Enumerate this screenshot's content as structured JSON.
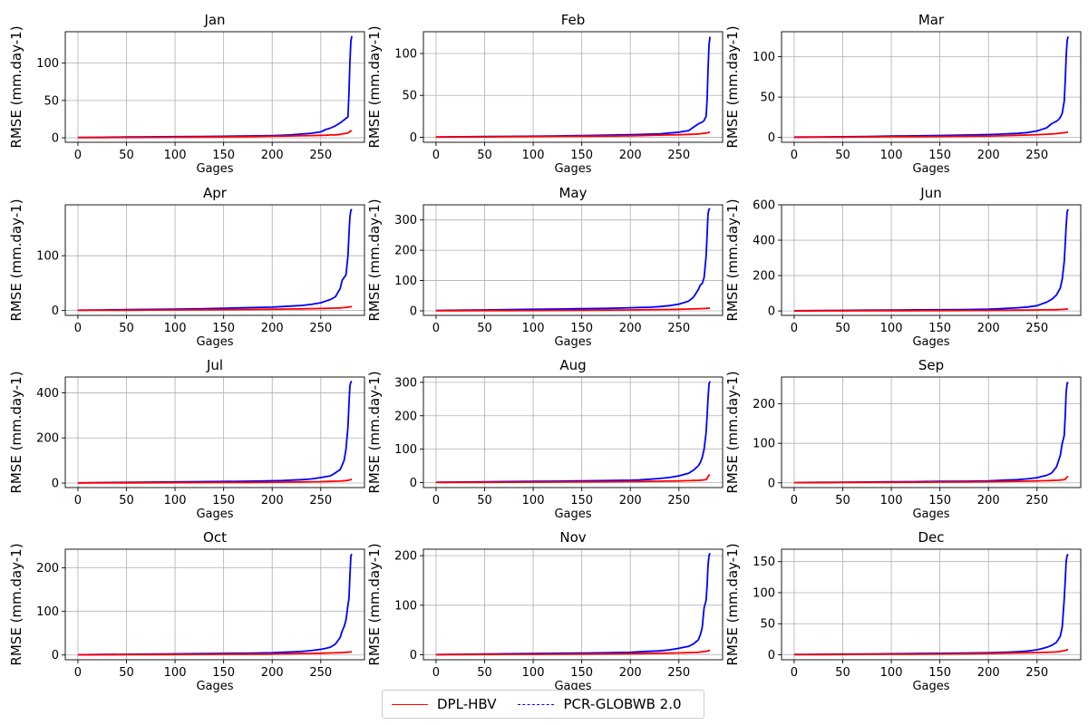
{
  "chart_data": {
    "type": "line",
    "layout": "4x3 grid of subplots",
    "x_label": "Gages",
    "y_label": "RMSE (mm.day-1)",
    "xlim": [
      -13,
      295
    ],
    "x_ticks": [
      0,
      50,
      100,
      150,
      200,
      250
    ],
    "grid": true,
    "legend": {
      "placement": "bottom-center",
      "entries": [
        {
          "name": "DPL-HBV",
          "color": "#ff0000",
          "style": "solid"
        },
        {
          "name": "PCR-GLOBWB 2.0",
          "color": "#0000ff",
          "style": "dashed"
        }
      ]
    },
    "x": [
      0,
      25,
      50,
      75,
      100,
      125,
      150,
      175,
      200,
      210,
      220,
      230,
      240,
      250,
      255,
      260,
      265,
      270,
      272,
      274,
      276,
      278,
      279,
      280,
      281,
      282
    ],
    "subplots": [
      {
        "title": "Jan",
        "ylim": [
          -6,
          142
        ],
        "y_ticks": [
          0,
          50,
          100
        ],
        "series": [
          {
            "name": "DPL-HBV",
            "values": [
              0.2,
              0.3,
              0.4,
              0.6,
              0.8,
              1,
              1.2,
              1.5,
              2,
              2.2,
              2.5,
              2.8,
              3,
              3.3,
              3.5,
              3.8,
              4,
              4.5,
              5,
              5.5,
              6,
              6.5,
              7.5,
              8.5,
              9,
              9.5
            ]
          },
          {
            "name": "PCR-GLOBWB 2.0",
            "values": [
              0.5,
              0.7,
              1,
              1.3,
              1.5,
              1.8,
              2,
              2.5,
              3,
              3.3,
              4,
              5,
              6,
              8,
              11,
              13,
              16,
              20,
              22,
              24,
              26,
              28,
              60,
              100,
              130,
              136
            ]
          }
        ]
      },
      {
        "title": "Feb",
        "ylim": [
          -6,
          126
        ],
        "y_ticks": [
          0,
          50,
          100
        ],
        "series": [
          {
            "name": "DPL-HBV",
            "values": [
              0.2,
              0.3,
              0.4,
              0.6,
              0.8,
              1,
              1.2,
              1.4,
              1.7,
              2,
              2.2,
              2.5,
              2.8,
              3,
              3.2,
              3.4,
              3.6,
              4,
              4.2,
              4.5,
              4.8,
              5,
              5.2,
              5.5,
              5.8,
              6
            ]
          },
          {
            "name": "PCR-GLOBWB 2.0",
            "values": [
              0.4,
              0.6,
              0.8,
              1,
              1.3,
              1.6,
              2,
              2.4,
              3,
              3.3,
              3.7,
              4,
              5,
              6,
              7,
              8,
              12,
              16,
              17,
              18,
              20,
              25,
              45,
              80,
              110,
              120
            ]
          }
        ]
      },
      {
        "title": "Mar",
        "ylim": [
          -6,
          131
        ],
        "y_ticks": [
          0,
          50,
          100
        ],
        "series": [
          {
            "name": "DPL-HBV",
            "values": [
              0.2,
              0.3,
              0.4,
              0.6,
              0.8,
              1,
              1.2,
              1.5,
              1.8,
              2,
              2.3,
              2.6,
              3,
              3.4,
              3.7,
              4,
              4.3,
              4.7,
              5,
              5.3,
              5.6,
              5.9,
              6.1,
              6.3,
              6.5,
              6.7
            ]
          },
          {
            "name": "PCR-GLOBWB 2.0",
            "values": [
              0.4,
              0.6,
              0.9,
              1.2,
              1.6,
              2,
              2.4,
              3,
              3.6,
              4,
              4.5,
              5,
              6,
              8,
              10,
              12,
              17,
              20,
              22,
              25,
              30,
              45,
              70,
              100,
              120,
              125
            ]
          }
        ]
      },
      {
        "title": "Apr",
        "ylim": [
          -9,
          193
        ],
        "y_ticks": [
          0,
          100
        ],
        "series": [
          {
            "name": "DPL-HBV",
            "values": [
              0.2,
              0.3,
              0.5,
              0.7,
              1,
              1.2,
              1.5,
              1.8,
              2.2,
              2.5,
              2.8,
              3,
              3.3,
              3.6,
              3.8,
              4,
              4.3,
              4.6,
              5,
              5.3,
              5.6,
              6,
              6.3,
              6.6,
              6.8,
              7
            ]
          },
          {
            "name": "PCR-GLOBWB 2.0",
            "values": [
              0.5,
              1,
              1.5,
              2,
              2.5,
              3,
              4,
              5,
              6,
              7,
              8,
              9,
              11,
              14,
              17,
              20,
              25,
              40,
              55,
              60,
              65,
              100,
              140,
              170,
              183,
              185
            ]
          }
        ]
      },
      {
        "title": "May",
        "ylim": [
          -15,
          350
        ],
        "y_ticks": [
          0,
          100,
          200,
          300
        ],
        "series": [
          {
            "name": "DPL-HBV",
            "values": [
              0.3,
              0.5,
              0.8,
              1,
              1.3,
              1.6,
              2,
              2.5,
              3,
              3.3,
              3.7,
              4,
              4.5,
              5,
              5.5,
              6,
              6.3,
              6.7,
              7,
              7.3,
              7.6,
              8,
              8.3,
              8.6,
              9,
              9.5
            ]
          },
          {
            "name": "PCR-GLOBWB 2.0",
            "values": [
              1,
              2,
              3,
              4,
              5,
              6,
              7,
              8,
              10,
              11,
              12,
              14,
              17,
              22,
              27,
              32,
              45,
              70,
              85,
              90,
              110,
              180,
              250,
              320,
              335,
              338
            ]
          }
        ]
      },
      {
        "title": "Jun",
        "ylim": [
          -25,
          600
        ],
        "y_ticks": [
          0,
          200,
          400,
          600
        ],
        "series": [
          {
            "name": "DPL-HBV",
            "values": [
              0.3,
              0.5,
              0.8,
              1,
              1.4,
              1.8,
              2.2,
              2.7,
              3.3,
              3.7,
              4.2,
              4.6,
              5.1,
              5.6,
              6,
              6.5,
              7,
              7.5,
              8,
              8.5,
              9,
              9.5,
              10,
              10.5,
              11,
              11.5
            ]
          },
          {
            "name": "PCR-GLOBWB 2.0",
            "values": [
              1,
              2,
              3,
              4,
              5,
              6,
              7,
              8,
              10,
              12,
              15,
              18,
              22,
              30,
              40,
              50,
              65,
              90,
              110,
              130,
              180,
              280,
              380,
              480,
              560,
              575
            ]
          }
        ]
      },
      {
        "title": "Jul",
        "ylim": [
          -20,
          470
        ],
        "y_ticks": [
          0,
          200,
          400
        ],
        "series": [
          {
            "name": "DPL-HBV",
            "values": [
              0.3,
              0.6,
              0.9,
              1.2,
              1.6,
              2,
              2.5,
              3,
              3.6,
              4,
              4.5,
              5,
              5.6,
              6.2,
              6.8,
              7.4,
              8,
              8.7,
              9.3,
              10,
              11,
              12,
              13,
              14,
              15,
              16
            ]
          },
          {
            "name": "PCR-GLOBWB 2.0",
            "values": [
              1,
              2,
              3,
              4,
              5,
              6,
              7,
              8,
              10,
              11,
              13,
              15,
              18,
              24,
              28,
              32,
              45,
              60,
              80,
              100,
              150,
              250,
              350,
              430,
              448,
              450
            ]
          }
        ]
      },
      {
        "title": "Aug",
        "ylim": [
          -15,
          316
        ],
        "y_ticks": [
          0,
          100,
          200,
          300
        ],
        "series": [
          {
            "name": "DPL-HBV",
            "values": [
              0.3,
              0.5,
              0.8,
              1,
              1.3,
              1.6,
              2,
              2.4,
              2.9,
              3.2,
              3.6,
              4,
              4.4,
              4.9,
              5.3,
              5.7,
              6.1,
              6.5,
              7,
              7.5,
              8,
              9,
              12,
              18,
              22,
              23
            ]
          },
          {
            "name": "PCR-GLOBWB 2.0",
            "values": [
              1,
              1.5,
              2,
              3,
              3.5,
              4,
              5,
              6,
              7,
              8,
              10,
              12,
              15,
              20,
              24,
              28,
              37,
              50,
              60,
              75,
              100,
              150,
              200,
              250,
              295,
              303
            ]
          }
        ]
      },
      {
        "title": "Sep",
        "ylim": [
          -12,
          268
        ],
        "y_ticks": [
          0,
          100,
          200
        ],
        "series": [
          {
            "name": "DPL-HBV",
            "values": [
              0.3,
              0.5,
              0.8,
              1,
              1.3,
              1.6,
              2,
              2.4,
              2.9,
              3.2,
              3.5,
              3.9,
              4.3,
              4.7,
              5.1,
              5.5,
              5.9,
              6.3,
              6.7,
              7.1,
              7.5,
              8,
              9,
              12,
              15,
              16
            ]
          },
          {
            "name": "PCR-GLOBWB 2.0",
            "values": [
              0.5,
              1,
              1.5,
              2,
              2.5,
              3,
              3.5,
              4,
              5,
              6,
              7,
              8,
              10,
              13,
              16,
              19,
              25,
              40,
              55,
              70,
              100,
              120,
              170,
              230,
              252,
              255
            ]
          }
        ]
      },
      {
        "title": "Oct",
        "ylim": [
          -11,
          243
        ],
        "y_ticks": [
          0,
          100,
          200
        ],
        "series": [
          {
            "name": "DPL-HBV",
            "values": [
              0.2,
              0.4,
              0.6,
              0.8,
              1,
              1.3,
              1.6,
              2,
              2.4,
              2.7,
              3,
              3.3,
              3.6,
              4,
              4.3,
              4.6,
              4.9,
              5.2,
              5.5,
              5.8,
              6,
              6.3,
              6.6,
              6.9,
              7.2,
              7.5
            ]
          },
          {
            "name": "PCR-GLOBWB 2.0",
            "values": [
              0.5,
              1,
              1.5,
              2,
              2.5,
              3,
              3.5,
              4,
              5,
              6,
              7,
              8,
              10,
              13,
              15,
              18,
              25,
              40,
              55,
              65,
              80,
              115,
              130,
              180,
              228,
              232
            ]
          }
        ]
      },
      {
        "title": "Nov",
        "ylim": [
          -10,
          213
        ],
        "y_ticks": [
          0,
          100,
          200
        ],
        "series": [
          {
            "name": "DPL-HBV",
            "values": [
              0.2,
              0.4,
              0.6,
              0.8,
              1,
              1.2,
              1.5,
              1.8,
              2.2,
              2.5,
              2.8,
              3.1,
              3.4,
              3.7,
              4,
              4.3,
              4.6,
              5,
              5.5,
              6,
              6.5,
              7,
              7.5,
              8,
              8.5,
              9
            ]
          },
          {
            "name": "PCR-GLOBWB 2.0",
            "values": [
              0.5,
              1,
              1.5,
              2,
              2.5,
              3,
              3.5,
              4,
              5,
              6,
              7,
              8,
              10,
              13,
              15,
              17,
              22,
              30,
              40,
              55,
              95,
              110,
              140,
              180,
              200,
              205
            ]
          }
        ]
      },
      {
        "title": "Dec",
        "ylim": [
          -8,
          170
        ],
        "y_ticks": [
          0,
          50,
          100,
          150
        ],
        "series": [
          {
            "name": "DPL-HBV",
            "values": [
              0.2,
              0.3,
              0.5,
              0.7,
              0.9,
              1.1,
              1.4,
              1.7,
              2,
              2.3,
              2.6,
              2.9,
              3.2,
              3.5,
              3.8,
              4,
              4.3,
              4.6,
              5,
              5.5,
              6,
              6.5,
              7,
              7.5,
              8,
              8.5
            ]
          },
          {
            "name": "PCR-GLOBWB 2.0",
            "values": [
              0.5,
              0.8,
              1.1,
              1.4,
              1.7,
              2,
              2.4,
              2.8,
              3.3,
              3.7,
              4.2,
              5,
              6,
              8,
              10,
              12,
              15,
              20,
              25,
              30,
              45,
              90,
              120,
              150,
              160,
              162
            ]
          }
        ]
      }
    ]
  }
}
